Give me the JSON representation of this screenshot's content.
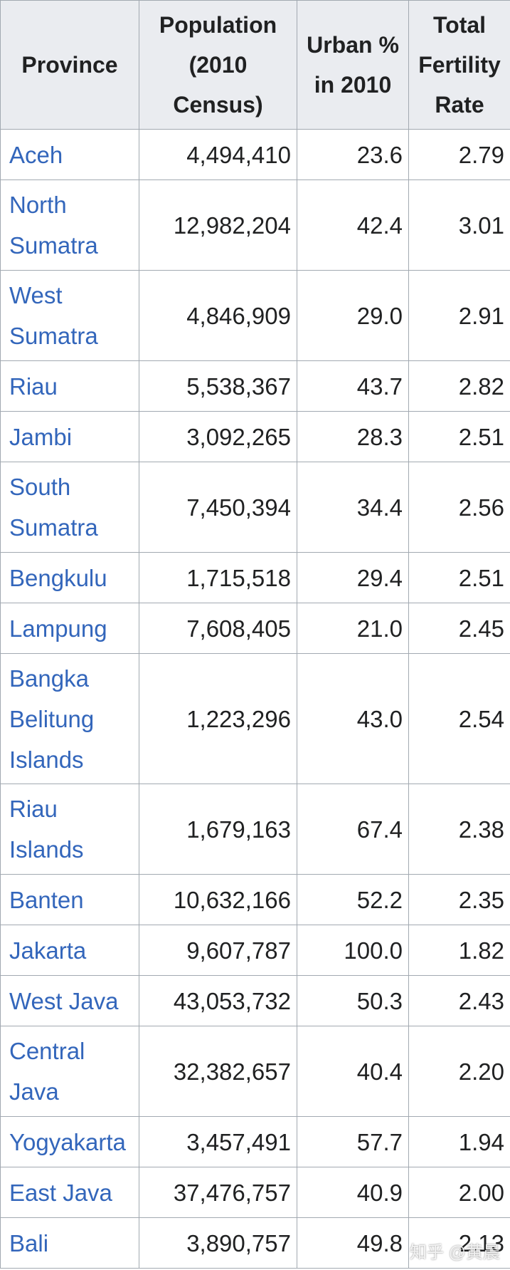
{
  "table": {
    "header": [
      "Province",
      "Population (2010 Census)",
      "Urban % in 2010",
      "Total Fertility Rate"
    ],
    "rows": [
      [
        "Aceh",
        "4,494,410",
        "23.6",
        "2.79"
      ],
      [
        "North Sumatra",
        "12,982,204",
        "42.4",
        "3.01"
      ],
      [
        "West Sumatra",
        "4,846,909",
        "29.0",
        "2.91"
      ],
      [
        "Riau",
        "5,538,367",
        "43.7",
        "2.82"
      ],
      [
        "Jambi",
        "3,092,265",
        "28.3",
        "2.51"
      ],
      [
        "South Sumatra",
        "7,450,394",
        "34.4",
        "2.56"
      ],
      [
        "Bengkulu",
        "1,715,518",
        "29.4",
        "2.51"
      ],
      [
        "Lampung",
        "7,608,405",
        "21.0",
        "2.45"
      ],
      [
        "Bangka Belitung Islands",
        "1,223,296",
        "43.0",
        "2.54"
      ],
      [
        "Riau Islands",
        "1,679,163",
        "67.4",
        "2.38"
      ],
      [
        "Banten",
        "10,632,166",
        "52.2",
        "2.35"
      ],
      [
        "Jakarta",
        "9,607,787",
        "100.0",
        "1.82"
      ],
      [
        "West Java",
        "43,053,732",
        "50.3",
        "2.43"
      ],
      [
        "Central Java",
        "32,382,657",
        "40.4",
        "2.20"
      ],
      [
        "Yogyakarta",
        "3,457,491",
        "57.7",
        "1.94"
      ],
      [
        "East Java",
        "37,476,757",
        "40.9",
        "2.00"
      ],
      [
        "Bali",
        "3,890,757",
        "49.8",
        "2.13"
      ]
    ]
  },
  "watermark": "知乎 @黄晨"
}
